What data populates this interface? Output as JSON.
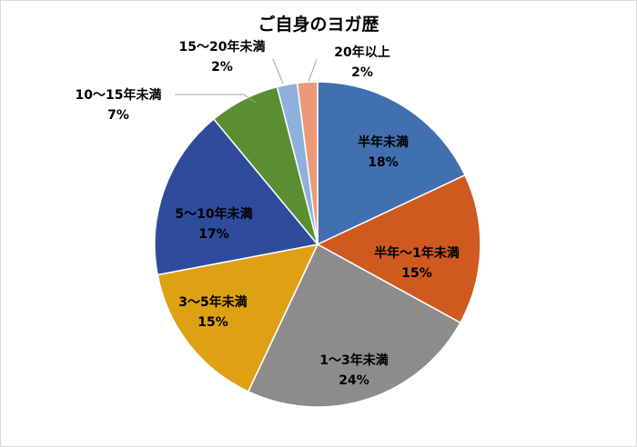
{
  "chart_data": {
    "type": "pie",
    "title": "ご自身のヨガ歴",
    "slices": [
      {
        "label": "半年未満",
        "value": 18,
        "value_label": "18%",
        "color": "#4170b0",
        "text_color": "#000000"
      },
      {
        "label": "半年～1年未満",
        "value": 15,
        "value_label": "15%",
        "color": "#cf5a1f",
        "text_color": "#000000"
      },
      {
        "label": "1～3年未満",
        "value": 24,
        "value_label": "24%",
        "color": "#8c8c8c",
        "text_color": "#000000"
      },
      {
        "label": "3～5年未満",
        "value": 15,
        "value_label": "15%",
        "color": "#dea114",
        "text_color": "#000000"
      },
      {
        "label": "5～10年未満",
        "value": 17,
        "value_label": "17%",
        "color": "#2e4b9c",
        "text_color": "#000000"
      },
      {
        "label": "10～15年未満",
        "value": 7,
        "value_label": "7%",
        "color": "#5b8e33",
        "text_color": "#000000"
      },
      {
        "label": "15～20年未満",
        "value": 2,
        "value_label": "2%",
        "color": "#8fb0dd",
        "text_color": "#000000"
      },
      {
        "label": "20年以上",
        "value": 2,
        "value_label": "2%",
        "color": "#eb9a78",
        "text_color": "#000000"
      }
    ],
    "start": "12 o'clock",
    "direction": "clockwise",
    "legend": "none"
  }
}
